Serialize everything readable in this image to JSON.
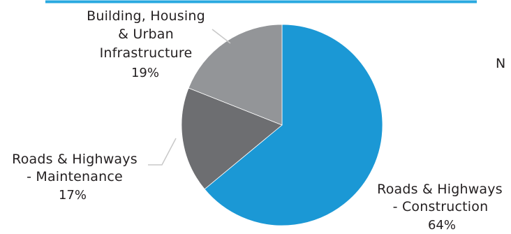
{
  "chart_data": {
    "type": "pie",
    "title": "",
    "slices": [
      {
        "label_lines": [
          "Roads & Highways",
          "- Construction"
        ],
        "percent_text": "64%",
        "value": 64,
        "color": "#1b98d5"
      },
      {
        "label_lines": [
          "Roads & Highways",
          "- Maintenance"
        ],
        "percent_text": "17%",
        "value": 17,
        "color": "#6d6e71"
      },
      {
        "label_lines": [
          "Building, Housing",
          "& Urban",
          "Infrastructure"
        ],
        "percent_text": "19%",
        "value": 19,
        "color": "#939598"
      }
    ],
    "legend": "none",
    "accent_color": "#29a9e0"
  },
  "edge_text": "N"
}
